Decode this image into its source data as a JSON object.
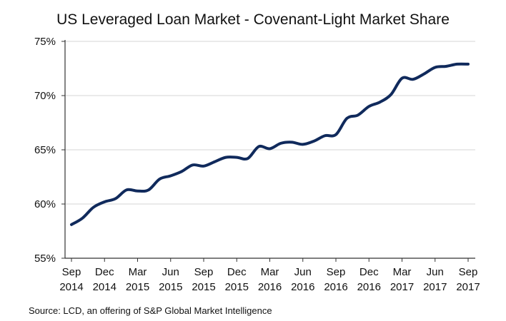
{
  "chart_data": {
    "type": "line",
    "title": "US Leveraged Loan Market - Covenant-Light Market Share",
    "xlabel": "",
    "ylabel": "",
    "ylim": [
      55,
      75
    ],
    "yticks": [
      "55%",
      "60%",
      "65%",
      "70%",
      "75%"
    ],
    "ytick_values": [
      55,
      60,
      65,
      70,
      75
    ],
    "grid": "horizontal",
    "xticks": [
      [
        "Sep",
        "2014"
      ],
      [
        "Dec",
        "2014"
      ],
      [
        "Mar",
        "2015"
      ],
      [
        "Jun",
        "2015"
      ],
      [
        "Sep",
        "2015"
      ],
      [
        "Dec",
        "2015"
      ],
      [
        "Mar",
        "2016"
      ],
      [
        "Jun",
        "2016"
      ],
      [
        "Sep",
        "2016"
      ],
      [
        "Dec",
        "2016"
      ],
      [
        "Mar",
        "2017"
      ],
      [
        "Jun",
        "2017"
      ],
      [
        "Sep",
        "2017"
      ]
    ],
    "x": [
      "Sep 2014",
      "Oct 2014",
      "Nov 2014",
      "Dec 2014",
      "Jan 2015",
      "Feb 2015",
      "Mar 2015",
      "Apr 2015",
      "May 2015",
      "Jun 2015",
      "Jul 2015",
      "Aug 2015",
      "Sep 2015",
      "Oct 2015",
      "Nov 2015",
      "Dec 2015",
      "Jan 2016",
      "Feb 2016",
      "Mar 2016",
      "Apr 2016",
      "May 2016",
      "Jun 2016",
      "Jul 2016",
      "Aug 2016",
      "Sep 2016",
      "Oct 2016",
      "Nov 2016",
      "Dec 2016",
      "Jan 2017",
      "Feb 2017",
      "Mar 2017",
      "Apr 2017",
      "May 2017",
      "Jun 2017",
      "Jul 2017",
      "Aug 2017",
      "Sep 2017"
    ],
    "series": [
      {
        "color": "#102a5c",
        "values": [
          58.1,
          58.7,
          59.7,
          60.2,
          60.5,
          61.3,
          61.2,
          61.3,
          62.3,
          62.6,
          63.0,
          63.6,
          63.5,
          63.9,
          64.3,
          64.3,
          64.2,
          65.3,
          65.1,
          65.6,
          65.7,
          65.5,
          65.8,
          66.3,
          66.4,
          67.9,
          68.2,
          69.0,
          69.4,
          70.1,
          71.6,
          71.5,
          72.0,
          72.6,
          72.7,
          72.9,
          72.9
        ]
      }
    ]
  },
  "source": "Source: LCD, an offering  of S&P Global Market Intelligence"
}
